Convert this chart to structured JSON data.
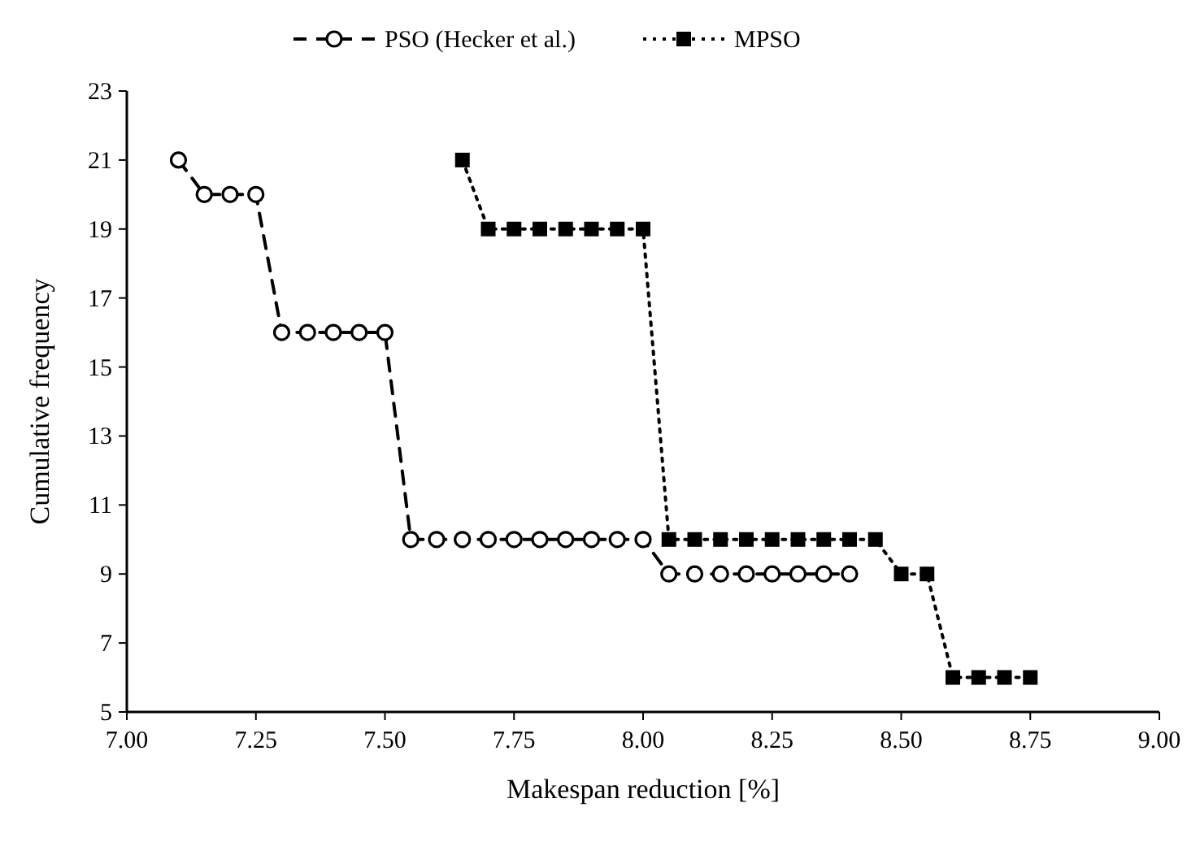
{
  "chart_data": {
    "type": "line",
    "xlabel": "Makespan reduction [%]",
    "ylabel": "Cumulative frequency",
    "xlim": [
      7,
      9
    ],
    "ylim": [
      5,
      23
    ],
    "xticks": [
      {
        "value": 7,
        "label": "7.00"
      },
      {
        "value": 7.25,
        "label": "7.25"
      },
      {
        "value": 7.5,
        "label": "7.50"
      },
      {
        "value": 7.75,
        "label": "7.75"
      },
      {
        "value": 8,
        "label": "8.00"
      },
      {
        "value": 8.25,
        "label": "8.25"
      },
      {
        "value": 8.5,
        "label": "8.50"
      },
      {
        "value": 8.75,
        "label": "8.75"
      },
      {
        "value": 9,
        "label": "9.00"
      }
    ],
    "yticks": [
      5,
      7,
      9,
      11,
      13,
      15,
      17,
      19,
      21,
      23
    ],
    "grid": false,
    "legend": "top",
    "series": [
      {
        "name": "PSO (Hecker et al.)",
        "color": "#000000",
        "marker": "circle",
        "line_style": "dashed",
        "x": [
          7.1,
          7.15,
          7.2,
          7.25,
          7.3,
          7.35,
          7.4,
          7.45,
          7.5,
          7.55,
          7.6,
          7.65,
          7.7,
          7.75,
          7.8,
          7.85,
          7.9,
          7.95,
          8.0,
          8.05,
          8.1,
          8.15,
          8.2,
          8.25,
          8.3,
          8.35,
          8.4
        ],
        "values": [
          21,
          20,
          20,
          20,
          16,
          16,
          16,
          16,
          16,
          10,
          10,
          10,
          10,
          10,
          10,
          10,
          10,
          10,
          10,
          9,
          9,
          9,
          9,
          9,
          9,
          9,
          9
        ]
      },
      {
        "name": "MPSO",
        "color": "#000000",
        "marker": "square",
        "line_style": "dotted",
        "x": [
          7.65,
          7.7,
          7.75,
          7.8,
          7.85,
          7.9,
          7.95,
          8.0,
          8.05,
          8.1,
          8.15,
          8.2,
          8.25,
          8.3,
          8.35,
          8.4,
          8.45,
          8.5,
          8.55,
          8.6,
          8.65,
          8.7,
          8.75
        ],
        "values": [
          21,
          19,
          19,
          19,
          19,
          19,
          19,
          19,
          10,
          10,
          10,
          10,
          10,
          10,
          10,
          10,
          10,
          9,
          9,
          6,
          6,
          6,
          6
        ]
      }
    ]
  }
}
